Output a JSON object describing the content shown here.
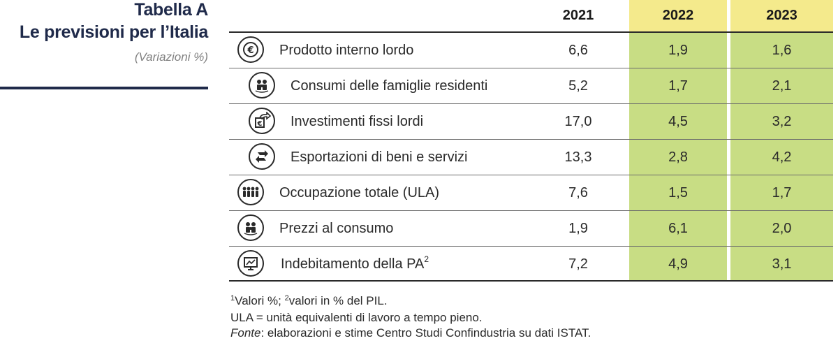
{
  "title": {
    "line1": "Tabella A",
    "line2": "Le previsioni per l’Italia",
    "subtitle": "(Variazioni %)"
  },
  "table": {
    "years": [
      "2021",
      "2022",
      "2023"
    ],
    "rows": [
      {
        "icon": "euro-coin-icon",
        "label": "Prodotto interno lordo",
        "sup": "",
        "v2021": "6,6",
        "v2022": "1,9",
        "v2023": "1,6"
      },
      {
        "icon": "family-icon",
        "label": "Consumi delle famiglie residenti",
        "sup": "",
        "v2021": "5,2",
        "v2022": "1,7",
        "v2023": "2,1"
      },
      {
        "icon": "investment-icon",
        "label": "Investimenti fissi lordi",
        "sup": "",
        "v2021": "17,0",
        "v2022": "4,5",
        "v2023": "3,2"
      },
      {
        "icon": "exchange-icon",
        "label": "Esportazioni di beni e servizi",
        "sup": "",
        "v2021": "13,3",
        "v2022": "2,8",
        "v2023": "4,2"
      },
      {
        "icon": "workers-icon",
        "label": "Occupazione totale (ULA)",
        "sup": "",
        "v2021": "7,6",
        "v2022": "1,5",
        "v2023": "1,7"
      },
      {
        "icon": "family-icon",
        "label": "Prezzi al consumo",
        "sup": "",
        "v2021": "1,9",
        "v2022": "6,1",
        "v2023": "2,0"
      },
      {
        "icon": "monitor-chart-icon",
        "label": "Indebitamento della PA",
        "sup": "2",
        "v2021": "7,2",
        "v2022": "4,9",
        "v2023": "3,1"
      }
    ]
  },
  "notes": {
    "n1_sup": "1",
    "n1_text": "Valori %; ",
    "n2_sup": "2",
    "n2_text": "valori in % del PIL.",
    "line2": "ULA = unità equivalenti di lavoro a tempo pieno.",
    "source_label": "Fonte",
    "source_text": ": elaborazioni e stime Centro Studi Confindustria su dati ISTAT."
  },
  "colors": {
    "title": "#1f2a4a",
    "header_highlight": "#f4ea8c",
    "cell_highlight": "#c8dd84"
  }
}
